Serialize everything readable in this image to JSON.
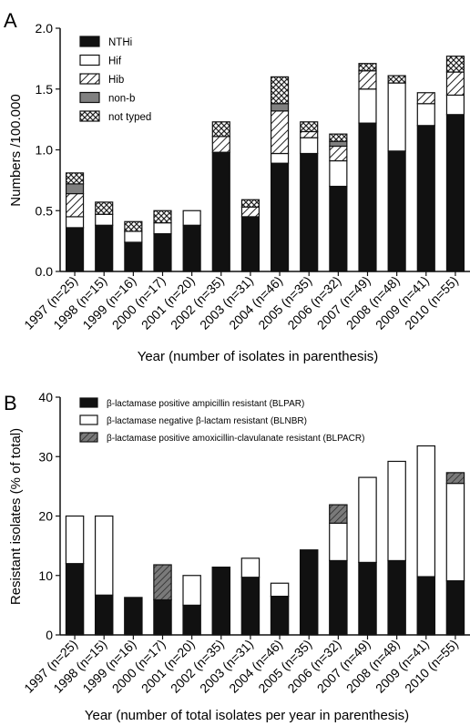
{
  "panels": [
    {
      "letter": "A",
      "ylabel": "Numbers /100.000",
      "xlabel": "Year (number of isolates in parenthesis)",
      "legend": [
        "NTHi",
        "Hif",
        "Hib",
        "non-b",
        "not typed"
      ]
    },
    {
      "letter": "B",
      "ylabel": "Resistant isolates (% of total)",
      "xlabel": "Year (number of total isolates per year in parenthesis)",
      "legend": [
        "β-lactamase positive ampicillin resistant (BLPAR)",
        "β-lactamase negative β-lactam resistant (BLNBR)",
        "β-lactamase positive amoxicillin-clavulanate resistant (BLPACR)"
      ]
    }
  ],
  "colors": {
    "black_fill": "#111111",
    "white_fill": "#ffffff",
    "grey_fill": "#808080",
    "hatch_stroke": "#222222"
  },
  "chart_data": [
    {
      "type": "bar",
      "stacked": true,
      "categories": [
        "1997 (n=25)",
        "1998 (n=15)",
        "1999 (n=16)",
        "2000 (n=17)",
        "2001 (n=20)",
        "2002 (n=35)",
        "2003 (n=31)",
        "2004 (n=46)",
        "2005 (n=35)",
        "2006 (n=32)",
        "2007 (n=49)",
        "2008 (n=48)",
        "2009 (n=41)",
        "2010 (n=55)"
      ],
      "xlabel": "Year (number of isolates in parenthesis)",
      "ylabel": "Numbers /100.000",
      "ylim": [
        0,
        2.0
      ],
      "yticks": [
        "0.0",
        "0.5",
        "1.0",
        "1.5",
        "2.0"
      ],
      "legend_position": "top-left",
      "series": [
        {
          "name": "NTHi",
          "fill": "solid-black",
          "values": [
            0.36,
            0.38,
            0.24,
            0.31,
            0.38,
            0.98,
            0.45,
            0.89,
            0.97,
            0.7,
            1.22,
            0.99,
            1.2,
            1.29
          ]
        },
        {
          "name": "Hif",
          "fill": "white",
          "values": [
            0.09,
            0.09,
            0.09,
            0.09,
            0.12,
            0.0,
            0.0,
            0.08,
            0.13,
            0.21,
            0.28,
            0.56,
            0.18,
            0.16
          ]
        },
        {
          "name": "Hib",
          "fill": "hatch-diagonal",
          "values": [
            0.19,
            0.0,
            0.0,
            0.0,
            0.0,
            0.13,
            0.08,
            0.35,
            0.05,
            0.12,
            0.15,
            0.0,
            0.09,
            0.19
          ]
        },
        {
          "name": "non-b",
          "fill": "solid-grey",
          "values": [
            0.08,
            0.0,
            0.0,
            0.0,
            0.0,
            0.0,
            0.0,
            0.06,
            0.0,
            0.04,
            0.0,
            0.0,
            0.0,
            0.0
          ]
        },
        {
          "name": "not typed",
          "fill": "crosshatch",
          "values": [
            0.09,
            0.1,
            0.08,
            0.1,
            0.0,
            0.12,
            0.06,
            0.22,
            0.08,
            0.06,
            0.06,
            0.06,
            0.0,
            0.13
          ]
        }
      ]
    },
    {
      "type": "bar",
      "stacked": true,
      "categories": [
        "1997 (n=25)",
        "1998 (n=15)",
        "1999 (n=16)",
        "2000 (n=17)",
        "2001 (n=20)",
        "2002 (n=35)",
        "2003 (n=31)",
        "2004 (n=46)",
        "2005 (n=35)",
        "2006 (n=32)",
        "2007 (n=49)",
        "2008 (n=48)",
        "2009 (n=41)",
        "2010 (n=55)"
      ],
      "xlabel": "Year (number of total isolates per year in parenthesis)",
      "ylabel": "Resistant isolates (% of total)",
      "ylim": [
        0,
        40
      ],
      "yticks": [
        "0",
        "10",
        "20",
        "30",
        "40"
      ],
      "legend_position": "top-left",
      "series": [
        {
          "name": "β-lactamase positive ampicillin resistant (BLPAR)",
          "fill": "solid-black",
          "values": [
            12.0,
            6.7,
            6.3,
            5.9,
            5.0,
            11.4,
            9.7,
            6.5,
            14.3,
            12.5,
            12.2,
            12.5,
            9.8,
            9.1
          ]
        },
        {
          "name": "β-lactamase negative β-lactam resistant (BLNBR)",
          "fill": "white",
          "values": [
            8.0,
            13.3,
            0.0,
            0.0,
            5.0,
            0.0,
            3.2,
            2.2,
            0.0,
            6.3,
            14.3,
            16.7,
            22.0,
            16.4
          ]
        },
        {
          "name": "β-lactamase positive amoxicillin-clavulanate resistant (BLPACR)",
          "fill": "hatch-grey",
          "values": [
            0.0,
            0.0,
            0.0,
            5.9,
            0.0,
            0.0,
            0.0,
            0.0,
            0.0,
            3.1,
            0.0,
            0.0,
            0.0,
            1.8
          ]
        }
      ]
    }
  ]
}
